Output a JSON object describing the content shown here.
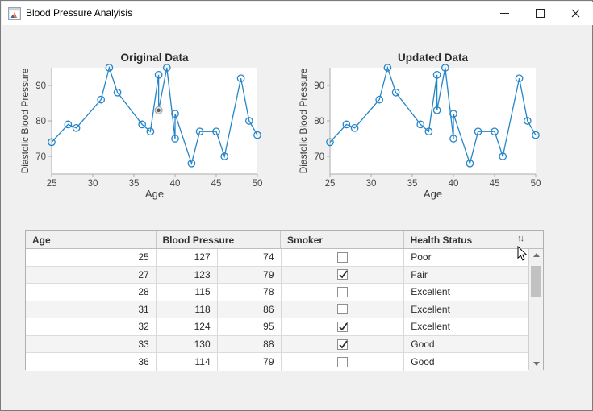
{
  "window": {
    "title": "Blood Pressure Analyisis"
  },
  "colors": {
    "line_blue": "#2485C7",
    "axis_gray": "#ababab",
    "tick_text": "#454545",
    "label_text": "#3c3c3c",
    "title_text": "#2a2a2a",
    "window_bg": "#f0f0f0",
    "titlebar_bg": "#ffffff",
    "highlight_dot_center": "#5a5a5a",
    "highlight_dot_ring": "#a8a8a8"
  },
  "charts": [
    {
      "title": "Original Data",
      "xlabel": "Age",
      "ylabel": "Diastolic Blood Pressure",
      "chart_data": {
        "type": "line",
        "x": [
          25,
          27,
          28,
          31,
          32,
          33,
          36,
          37,
          38,
          38,
          39,
          40,
          40,
          42,
          43,
          45,
          46,
          48,
          49,
          50
        ],
        "y": [
          74,
          79,
          78,
          86,
          95,
          88,
          79,
          77,
          93,
          83,
          95,
          75,
          82,
          68,
          77,
          77,
          70,
          92,
          80,
          76
        ],
        "xlim": [
          25,
          50
        ],
        "ylim": [
          65,
          95
        ],
        "xticks": [
          25,
          30,
          35,
          40,
          45,
          50
        ],
        "yticks": [
          70,
          80,
          90
        ],
        "marker": "open-circle",
        "legend": "none",
        "grid": "off",
        "highlight_index": 9
      }
    },
    {
      "title": "Updated Data",
      "xlabel": "Age",
      "ylabel": "Diastolic Blood Pressure",
      "chart_data": {
        "type": "line",
        "x": [
          25,
          27,
          28,
          31,
          32,
          33,
          36,
          37,
          38,
          38,
          39,
          40,
          40,
          42,
          43,
          45,
          46,
          48,
          49,
          50
        ],
        "y": [
          74,
          79,
          78,
          86,
          95,
          88,
          79,
          77,
          93,
          83,
          95,
          75,
          82,
          68,
          77,
          77,
          70,
          92,
          80,
          76
        ],
        "xlim": [
          25,
          50
        ],
        "ylim": [
          65,
          95
        ],
        "xticks": [
          25,
          30,
          35,
          40,
          45,
          50
        ],
        "yticks": [
          70,
          80,
          90
        ],
        "marker": "open-circle",
        "legend": "none",
        "grid": "off",
        "highlight_index": null
      }
    }
  ],
  "table": {
    "columns": [
      "Age",
      "Blood Pressure",
      "Smoker",
      "Health Status"
    ],
    "sort_icon": "↑↓",
    "rows": [
      {
        "age": "25",
        "bp_systolic": "127",
        "bp_diastolic": "74",
        "smoker": false,
        "health_status": "Poor"
      },
      {
        "age": "27",
        "bp_systolic": "123",
        "bp_diastolic": "79",
        "smoker": true,
        "health_status": "Fair"
      },
      {
        "age": "28",
        "bp_systolic": "115",
        "bp_diastolic": "78",
        "smoker": false,
        "health_status": "Excellent"
      },
      {
        "age": "31",
        "bp_systolic": "118",
        "bp_diastolic": "86",
        "smoker": false,
        "health_status": "Excellent"
      },
      {
        "age": "32",
        "bp_systolic": "124",
        "bp_diastolic": "95",
        "smoker": true,
        "health_status": "Excellent"
      },
      {
        "age": "33",
        "bp_systolic": "130",
        "bp_diastolic": "88",
        "smoker": true,
        "health_status": "Good"
      },
      {
        "age": "36",
        "bp_systolic": "114",
        "bp_diastolic": "79",
        "smoker": false,
        "health_status": "Good"
      }
    ]
  }
}
